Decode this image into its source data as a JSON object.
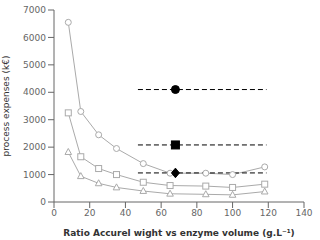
{
  "chart_data": {
    "type": "line",
    "title": "",
    "xlabel": "Ratio Accurel wight vs enzyme volume (g.L⁻¹)",
    "ylabel": "process expenses (k€)",
    "xlim": [
      0,
      140
    ],
    "ylim": [
      0,
      7000
    ],
    "xticks": [
      0,
      20,
      40,
      60,
      80,
      100,
      120,
      140
    ],
    "yticks": [
      0,
      1000,
      2000,
      3000,
      4000,
      5000,
      6000,
      7000
    ],
    "grid": false,
    "series": [
      {
        "type": "line",
        "color": "#aaaaaa",
        "marker": "circle",
        "x": [
          8,
          15,
          25,
          35,
          50,
          65,
          85,
          100,
          118
        ],
        "values": [
          6550,
          3300,
          2450,
          1950,
          1400,
          1050,
          1050,
          1000,
          1280
        ]
      },
      {
        "type": "line",
        "color": "#aaaaaa",
        "marker": "square",
        "x": [
          8,
          15,
          25,
          35,
          50,
          65,
          85,
          100,
          118
        ],
        "values": [
          3250,
          1650,
          1220,
          1000,
          720,
          600,
          580,
          530,
          650
        ]
      },
      {
        "type": "line",
        "color": "#aaaaaa",
        "marker": "triangle",
        "x": [
          8,
          15,
          25,
          35,
          50,
          65,
          85,
          100,
          118
        ],
        "values": [
          1820,
          940,
          680,
          530,
          400,
          300,
          280,
          260,
          380
        ]
      },
      {
        "type": "line",
        "color": "#000000",
        "line_style": "dashed",
        "x": [
          47,
          119
        ],
        "values": [
          4100,
          4100
        ]
      },
      {
        "type": "scatter",
        "color": "#000000",
        "marker": "circle",
        "x": [
          68
        ],
        "values": [
          4100
        ]
      },
      {
        "type": "line",
        "color": "#000000",
        "line_style": "dashed",
        "x": [
          47,
          119
        ],
        "values": [
          2080,
          2080
        ]
      },
      {
        "type": "scatter",
        "color": "#000000",
        "marker": "square",
        "x": [
          68
        ],
        "values": [
          2080
        ]
      },
      {
        "type": "line",
        "color": "#000000",
        "line_style": "dashed",
        "x": [
          47,
          119
        ],
        "values": [
          1060,
          1060
        ]
      },
      {
        "type": "scatter",
        "color": "#000000",
        "marker": "diamond",
        "x": [
          68
        ],
        "values": [
          1060
        ]
      }
    ]
  }
}
